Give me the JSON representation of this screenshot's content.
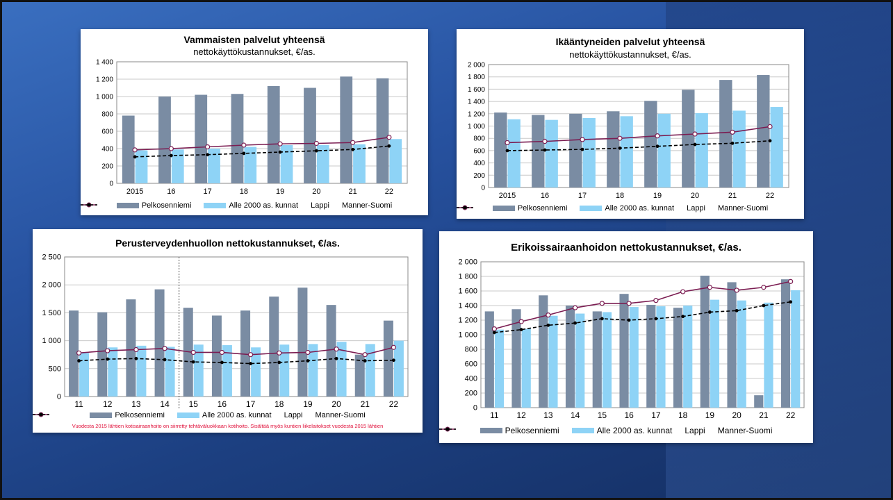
{
  "colors": {
    "pelkosenniemi": "#7a8ca3",
    "alle2000": "#8ed3f6",
    "lappi": "#7b1d52",
    "manner": "#000000"
  },
  "legend": {
    "pelkosenniemi": "Pelkosenniemi",
    "alle2000": "Alle 2000 as. kunnat",
    "lappi": "Lappi",
    "manner": "Manner-Suomi"
  },
  "chart_data": [
    {
      "id": "vammaisten",
      "type": "bar",
      "title": "Vammaisten palvelut yhteensä",
      "subtitle": "nettokäyttökustannukset, €/as.",
      "categories": [
        "2015",
        "16",
        "17",
        "18",
        "19",
        "20",
        "21",
        "22"
      ],
      "ylim": [
        0,
        1400
      ],
      "yticks": [
        0,
        200,
        400,
        600,
        800,
        1000,
        1200,
        1400
      ],
      "ytick_labels": [
        "0",
        "200",
        "400",
        "600",
        "800",
        "1 000",
        "1 200",
        "1 400"
      ],
      "grid": true,
      "legend_position": "bottom",
      "series": [
        {
          "name": "Pelkosenniemi",
          "kind": "bar",
          "values": [
            780,
            1000,
            1020,
            1030,
            1120,
            1100,
            1230,
            1210
          ]
        },
        {
          "name": "Alle 2000 as. kunnat",
          "kind": "bar",
          "values": [
            380,
            390,
            400,
            420,
            440,
            440,
            450,
            510
          ]
        },
        {
          "name": "Lappi",
          "kind": "line",
          "values": [
            385,
            400,
            420,
            440,
            455,
            460,
            470,
            530
          ]
        },
        {
          "name": "Manner-Suomi",
          "kind": "dashed-line",
          "values": [
            305,
            320,
            330,
            345,
            360,
            375,
            390,
            430
          ]
        }
      ]
    },
    {
      "id": "ikaantyneiden",
      "type": "bar",
      "title": "Ikääntyneiden palvelut yhteensä",
      "subtitle": "nettokäyttökustannukset, €/as.",
      "categories": [
        "2015",
        "16",
        "17",
        "18",
        "19",
        "20",
        "21",
        "22"
      ],
      "ylim": [
        0,
        2000
      ],
      "yticks": [
        0,
        200,
        400,
        600,
        800,
        1000,
        1200,
        1400,
        1600,
        1800,
        2000
      ],
      "ytick_labels": [
        "0",
        "200",
        "400",
        "600",
        "800",
        "1 000",
        "1 200",
        "1 400",
        "1 600",
        "1 800",
        "2 000"
      ],
      "grid": true,
      "legend_position": "bottom",
      "series": [
        {
          "name": "Pelkosenniemi",
          "kind": "bar",
          "values": [
            1220,
            1180,
            1200,
            1240,
            1410,
            1590,
            1750,
            1830
          ]
        },
        {
          "name": "Alle 2000 as. kunnat",
          "kind": "bar",
          "values": [
            1110,
            1100,
            1130,
            1160,
            1200,
            1210,
            1250,
            1310
          ]
        },
        {
          "name": "Lappi",
          "kind": "line",
          "values": [
            730,
            750,
            780,
            800,
            840,
            870,
            900,
            990
          ]
        },
        {
          "name": "Manner-Suomi",
          "kind": "dashed-line",
          "values": [
            600,
            610,
            620,
            640,
            670,
            700,
            720,
            760
          ]
        }
      ]
    },
    {
      "id": "perusterveydenhuolto",
      "type": "bar",
      "title": "Perusterveydenhuollon nettokustannukset, €/as.",
      "subtitle": "",
      "note": "Vuodesta 2015 lähtien kotisairaanhoito on siirretty tehtäväluokkaan  kotihoito. Sisältää myös kuntien liikelaitokset vuodesta 2015 lähtien",
      "categories": [
        "11",
        "12",
        "13",
        "14",
        "15",
        "16",
        "17",
        "18",
        "19",
        "20",
        "21",
        "22"
      ],
      "ylim": [
        0,
        2500
      ],
      "yticks": [
        0,
        500,
        1000,
        1500,
        2000,
        2500
      ],
      "ytick_labels": [
        "0",
        "500",
        "1 000",
        "1 500",
        "2 000",
        "2 500"
      ],
      "grid": true,
      "legend_position": "bottom",
      "divider_after_index": 3,
      "series": [
        {
          "name": "Pelkosenniemi",
          "kind": "bar",
          "values": [
            1540,
            1510,
            1740,
            1920,
            1590,
            1450,
            1540,
            1790,
            1950,
            1640,
            750,
            1360
          ]
        },
        {
          "name": "Alle 2000 as. kunnat",
          "kind": "bar",
          "values": [
            780,
            880,
            910,
            890,
            930,
            920,
            880,
            930,
            940,
            980,
            940,
            1000
          ]
        },
        {
          "name": "Lappi",
          "kind": "line",
          "values": [
            780,
            820,
            840,
            860,
            790,
            790,
            750,
            780,
            790,
            850,
            750,
            880
          ]
        },
        {
          "name": "Manner-Suomi",
          "kind": "dashed-line",
          "values": [
            640,
            670,
            680,
            660,
            620,
            610,
            590,
            610,
            640,
            680,
            640,
            650
          ]
        }
      ]
    },
    {
      "id": "erikoissairaanhoito",
      "type": "bar",
      "title": "Erikoissairaanhoidon nettokustannukset, €/as.",
      "subtitle": "",
      "categories": [
        "11",
        "12",
        "13",
        "14",
        "15",
        "16",
        "17",
        "18",
        "19",
        "20",
        "21",
        "22"
      ],
      "ylim": [
        0,
        2000
      ],
      "yticks": [
        0,
        200,
        400,
        600,
        800,
        1000,
        1200,
        1400,
        1600,
        1800,
        2000
      ],
      "ytick_labels": [
        "0",
        "200",
        "400",
        "600",
        "800",
        "1 000",
        "1 200",
        "1 400",
        "1 600",
        "1 800",
        "2 000"
      ],
      "grid": true,
      "legend_position": "bottom",
      "series": [
        {
          "name": "Pelkosenniemi",
          "kind": "bar",
          "values": [
            1320,
            1350,
            1540,
            1400,
            1320,
            1560,
            1410,
            1370,
            1810,
            1720,
            170,
            1760
          ]
        },
        {
          "name": "Alle 2000 as. kunnat",
          "kind": "bar",
          "values": [
            1070,
            1080,
            1260,
            1290,
            1310,
            1380,
            1390,
            1400,
            1480,
            1470,
            1440,
            1610
          ]
        },
        {
          "name": "Lappi",
          "kind": "line",
          "values": [
            1080,
            1180,
            1270,
            1370,
            1430,
            1430,
            1470,
            1590,
            1650,
            1610,
            1650,
            1730
          ]
        },
        {
          "name": "Manner-Suomi",
          "kind": "dashed-line",
          "values": [
            1030,
            1070,
            1130,
            1160,
            1220,
            1200,
            1220,
            1250,
            1310,
            1330,
            1400,
            1450
          ]
        }
      ]
    }
  ]
}
